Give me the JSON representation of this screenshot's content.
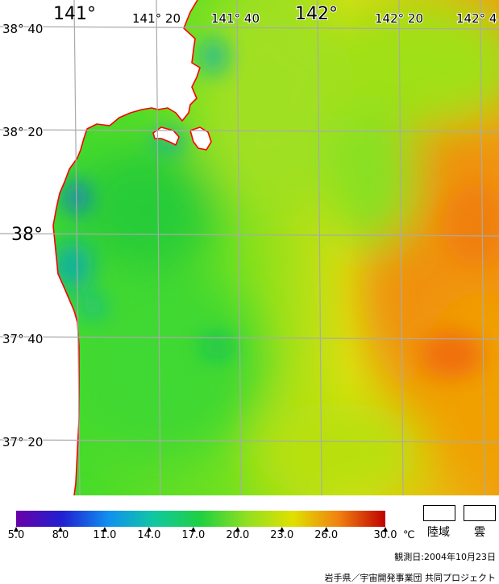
{
  "map": {
    "lon_labels": [
      {
        "text": "141°",
        "size": "major"
      },
      {
        "text": "141° 20",
        "size": "minor"
      },
      {
        "text": "141° 40",
        "size": "minor"
      },
      {
        "text": "142°",
        "size": "major"
      },
      {
        "text": "142° 20",
        "size": "minor"
      },
      {
        "text": "142° 4",
        "size": "minor"
      }
    ],
    "lat_labels": [
      {
        "text": "38° 40",
        "size": "minor"
      },
      {
        "text": "38° 20",
        "size": "minor"
      },
      {
        "text": "38°",
        "size": "major"
      },
      {
        "text": "37° 40",
        "size": "minor"
      },
      {
        "text": "37° 20",
        "size": "minor"
      }
    ],
    "coast_color": "#ff0000",
    "grid_color": "#aaaaaa"
  },
  "legend": {
    "ticks": [
      "5.0",
      "8.0",
      "11.0",
      "14.0",
      "17.0",
      "20.0",
      "23.0",
      "26.0",
      "30.0"
    ],
    "unit": "℃",
    "land_label": "陸域",
    "cloud_label": "雲",
    "observation_date": "観測日:2004年10月23日",
    "credit": "岩手県／宇宙開発事業団 共同プロジェクト",
    "colors": [
      "#6a00a8",
      "#2020d0",
      "#1090f0",
      "#10c8a0",
      "#20d040",
      "#90e020",
      "#e0e000",
      "#f08010",
      "#c00000"
    ]
  }
}
